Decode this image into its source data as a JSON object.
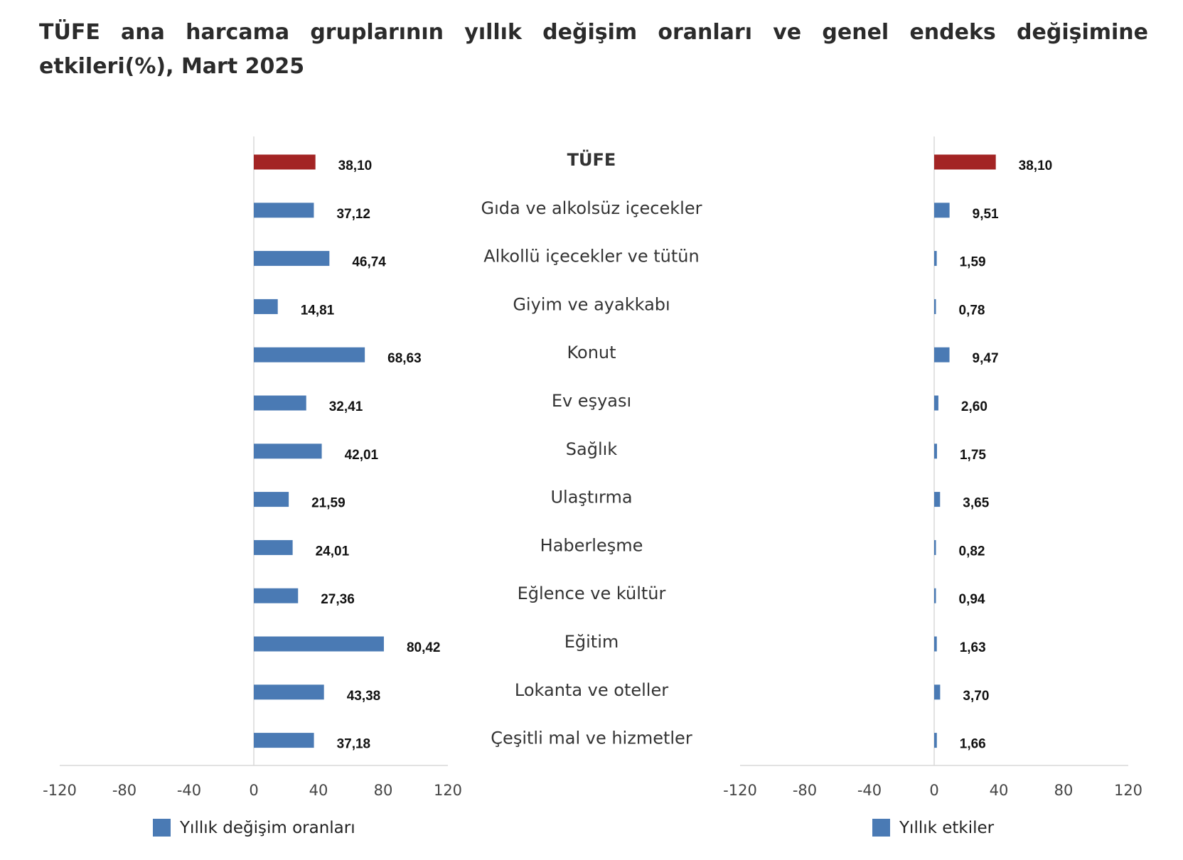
{
  "title": "TÜFE ana harcama gruplarının yıllık değişim oranları ve genel endeks değişimine etkileri(%), Mart 2025",
  "colors": {
    "highlight": "#a32424",
    "series": "#4a7ab4",
    "axis": "#d8d8d8"
  },
  "chart_data": [
    {
      "type": "bar",
      "orientation": "horizontal",
      "categories": [
        "TÜFE",
        "Gıda ve alkolsüz içecekler",
        "Alkollü içecekler ve tütün",
        "Giyim ve ayakkabı",
        "Konut",
        "Ev eşyası",
        "Sağlık",
        "Ulaştırma",
        "Haberleşme",
        "Eğlence ve kültür",
        "Eğitim",
        "Lokanta ve oteller",
        "Çeşitli mal ve hizmetler"
      ],
      "series": [
        {
          "name": "Yıllık değişim oranları",
          "values": [
            38.1,
            37.12,
            46.74,
            14.81,
            68.63,
            32.41,
            42.01,
            21.59,
            24.01,
            27.36,
            80.42,
            43.38,
            37.18
          ],
          "labels": [
            "38,10",
            "37,12",
            "46,74",
            "14,81",
            "68,63",
            "32,41",
            "42,01",
            "21,59",
            "24,01",
            "27,36",
            "80,42",
            "43,38",
            "37,18"
          ]
        }
      ],
      "xlim": [
        -120,
        120
      ],
      "xticks": [
        "-120",
        "-80",
        "-40",
        "0",
        "40",
        "80",
        "120"
      ],
      "grid": false,
      "legend": "bottom"
    },
    {
      "type": "bar",
      "orientation": "horizontal",
      "categories": [
        "TÜFE",
        "Gıda ve alkolsüz içecekler",
        "Alkollü içecekler ve tütün",
        "Giyim ve ayakkabı",
        "Konut",
        "Ev eşyası",
        "Sağlık",
        "Ulaştırma",
        "Haberleşme",
        "Eğlence ve kültür",
        "Eğitim",
        "Lokanta ve oteller",
        "Çeşitli mal ve hizmetler"
      ],
      "series": [
        {
          "name": "Yıllık etkiler",
          "values": [
            38.1,
            9.51,
            1.59,
            0.78,
            9.47,
            2.6,
            1.75,
            3.65,
            0.82,
            0.94,
            1.63,
            3.7,
            1.66
          ],
          "labels": [
            "38,10",
            "9,51",
            "1,59",
            "0,78",
            "9,47",
            "2,60",
            "1,75",
            "3,65",
            "0,82",
            "0,94",
            "1,63",
            "3,70",
            "1,66"
          ]
        }
      ],
      "xlim": [
        -120,
        120
      ],
      "xticks": [
        "-120",
        "-80",
        "-40",
        "0",
        "40",
        "80",
        "120"
      ],
      "grid": false,
      "legend": "bottom"
    }
  ]
}
